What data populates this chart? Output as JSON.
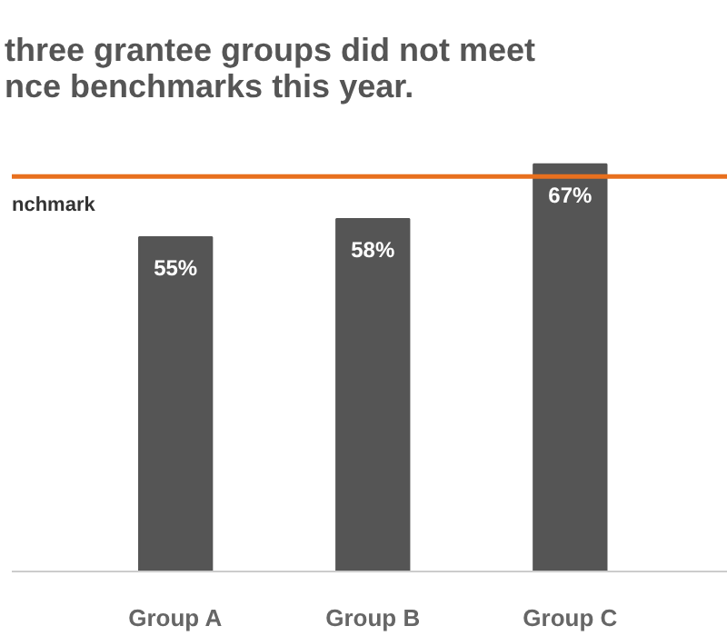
{
  "chart_data": {
    "type": "bar",
    "title": "three grantee groups did not meet\nnce benchmarks this year.",
    "categories": [
      "Group A",
      "Group B",
      "Group C"
    ],
    "values": [
      55,
      58,
      67
    ],
    "color": "#555555",
    "value_labels": [
      "55%",
      "58%",
      "67%"
    ],
    "ref_lines": [
      {
        "axis": "y",
        "value": 65,
        "label": "nchmark",
        "color": "#e8701e",
        "line_style": "solid"
      }
    ]
  }
}
